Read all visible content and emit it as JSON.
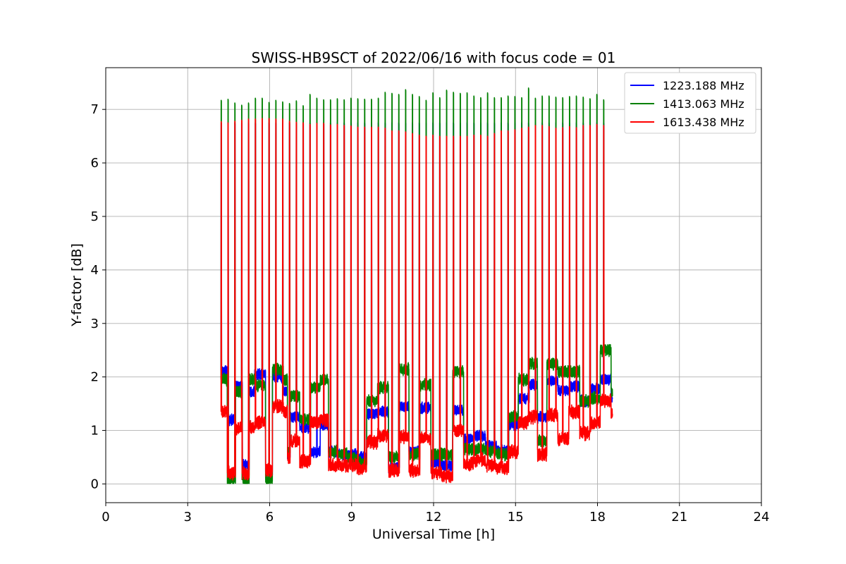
{
  "chart_data": {
    "type": "line",
    "title": "SWISS-HB9SCT of 2022/06/16 with focus code = 01",
    "xlabel": "Universal Time [h]",
    "ylabel": "Y-factor [dB]",
    "xlim": [
      0,
      24
    ],
    "ylim": [
      -0.35,
      7.78
    ],
    "xticks": [
      0,
      3,
      6,
      9,
      12,
      15,
      18,
      21,
      24
    ],
    "yticks": [
      0,
      1,
      2,
      3,
      4,
      5,
      6,
      7
    ],
    "grid": true,
    "legend_position": "top-right",
    "series": [
      {
        "name": "1223.188 MHz",
        "color": "#0000ff",
        "spike_peak": 6.75,
        "baseline_segments": [
          [
            4.22,
            2.12
          ],
          [
            4.45,
            1.2
          ],
          [
            4.75,
            1.82
          ],
          [
            5.0,
            0.35
          ],
          [
            5.25,
            1.72
          ],
          [
            5.45,
            2.05
          ],
          [
            5.85,
            0.25
          ],
          [
            6.1,
            2.0
          ],
          [
            6.5,
            1.72
          ],
          [
            6.65,
            0.55
          ],
          [
            6.75,
            1.25
          ],
          [
            7.1,
            1.05
          ],
          [
            7.5,
            0.6
          ],
          [
            7.85,
            1.1
          ],
          [
            8.15,
            0.6
          ],
          [
            8.5,
            0.55
          ],
          [
            8.85,
            0.55
          ],
          [
            9.2,
            0.5
          ],
          [
            9.55,
            1.32
          ],
          [
            9.95,
            1.35
          ],
          [
            10.35,
            0.3
          ],
          [
            10.75,
            1.45
          ],
          [
            11.1,
            0.6
          ],
          [
            11.5,
            1.42
          ],
          [
            11.9,
            0.4
          ],
          [
            12.3,
            0.35
          ],
          [
            12.7,
            1.38
          ],
          [
            13.1,
            0.85
          ],
          [
            13.5,
            0.9
          ],
          [
            13.9,
            0.72
          ],
          [
            14.3,
            0.62
          ],
          [
            14.75,
            1.1
          ],
          [
            15.1,
            1.6
          ],
          [
            15.5,
            1.85
          ],
          [
            15.8,
            1.25
          ],
          [
            16.15,
            1.92
          ],
          [
            16.55,
            1.75
          ],
          [
            16.95,
            1.82
          ],
          [
            17.35,
            1.55
          ],
          [
            17.75,
            1.78
          ],
          [
            18.1,
            1.95
          ],
          [
            18.5,
            1.58
          ]
        ]
      },
      {
        "name": "1413.063 MHz",
        "color": "#008000",
        "spike_peak": 7.2,
        "baseline_segments": [
          [
            4.22,
            1.95
          ],
          [
            4.45,
            0.08
          ],
          [
            4.75,
            1.72
          ],
          [
            5.0,
            0.08
          ],
          [
            5.25,
            1.95
          ],
          [
            5.45,
            1.85
          ],
          [
            5.85,
            0.08
          ],
          [
            6.1,
            2.15
          ],
          [
            6.5,
            1.95
          ],
          [
            6.65,
            0.6
          ],
          [
            6.75,
            1.65
          ],
          [
            7.1,
            1.2
          ],
          [
            7.5,
            1.8
          ],
          [
            7.85,
            1.95
          ],
          [
            8.15,
            0.6
          ],
          [
            8.5,
            0.55
          ],
          [
            8.85,
            0.48
          ],
          [
            9.2,
            0.4
          ],
          [
            9.55,
            1.55
          ],
          [
            9.95,
            1.8
          ],
          [
            10.35,
            0.5
          ],
          [
            10.75,
            2.15
          ],
          [
            11.1,
            0.55
          ],
          [
            11.5,
            1.85
          ],
          [
            11.9,
            0.55
          ],
          [
            12.3,
            0.55
          ],
          [
            12.7,
            2.1
          ],
          [
            13.1,
            0.65
          ],
          [
            13.5,
            0.65
          ],
          [
            13.9,
            0.6
          ],
          [
            14.3,
            0.55
          ],
          [
            14.75,
            1.25
          ],
          [
            15.1,
            1.95
          ],
          [
            15.5,
            2.25
          ],
          [
            15.8,
            0.8
          ],
          [
            16.15,
            2.25
          ],
          [
            16.55,
            2.1
          ],
          [
            16.95,
            2.1
          ],
          [
            17.35,
            1.55
          ],
          [
            17.75,
            1.6
          ],
          [
            18.1,
            2.5
          ],
          [
            18.5,
            1.7
          ]
        ]
      },
      {
        "name": "1613.438 MHz",
        "color": "#ff0000",
        "spike_peak": 6.7,
        "baseline_segments": [
          [
            4.22,
            1.35
          ],
          [
            4.45,
            0.2
          ],
          [
            4.75,
            1.05
          ],
          [
            5.0,
            0.2
          ],
          [
            5.25,
            1.05
          ],
          [
            5.45,
            1.15
          ],
          [
            5.85,
            0.25
          ],
          [
            6.1,
            1.45
          ],
          [
            6.5,
            1.35
          ],
          [
            6.65,
            0.48
          ],
          [
            6.75,
            0.82
          ],
          [
            7.1,
            0.42
          ],
          [
            7.5,
            1.15
          ],
          [
            7.85,
            1.2
          ],
          [
            8.15,
            0.35
          ],
          [
            8.5,
            0.35
          ],
          [
            8.85,
            0.35
          ],
          [
            9.2,
            0.28
          ],
          [
            9.55,
            0.78
          ],
          [
            9.95,
            0.9
          ],
          [
            10.35,
            0.25
          ],
          [
            10.75,
            0.88
          ],
          [
            11.1,
            0.25
          ],
          [
            11.5,
            0.85
          ],
          [
            11.9,
            0.2
          ],
          [
            12.3,
            0.15
          ],
          [
            12.7,
            1.0
          ],
          [
            13.1,
            0.38
          ],
          [
            13.5,
            0.45
          ],
          [
            13.9,
            0.35
          ],
          [
            14.3,
            0.3
          ],
          [
            14.75,
            0.6
          ],
          [
            15.1,
            1.15
          ],
          [
            15.5,
            1.25
          ],
          [
            15.8,
            0.55
          ],
          [
            16.15,
            1.3
          ],
          [
            16.55,
            0.85
          ],
          [
            16.95,
            1.35
          ],
          [
            17.35,
            0.95
          ],
          [
            17.75,
            1.15
          ],
          [
            18.1,
            1.55
          ],
          [
            18.5,
            1.3
          ]
        ]
      }
    ],
    "spike_times": [
      4.22,
      4.47,
      4.72,
      4.97,
      5.22,
      5.47,
      5.72,
      5.97,
      6.22,
      6.47,
      6.72,
      6.97,
      7.22,
      7.47,
      7.72,
      7.97,
      8.22,
      8.47,
      8.72,
      8.97,
      9.22,
      9.47,
      9.72,
      9.97,
      10.22,
      10.47,
      10.72,
      10.97,
      11.22,
      11.47,
      11.72,
      11.97,
      12.22,
      12.47,
      12.72,
      12.97,
      13.22,
      13.47,
      13.72,
      13.97,
      14.22,
      14.47,
      14.72,
      14.97,
      15.22,
      15.47,
      15.72,
      15.97,
      16.22,
      16.47,
      16.72,
      16.97,
      17.22,
      17.47,
      17.72,
      17.97,
      18.22
    ],
    "green_spike_peaks": [
      7.17,
      7.19,
      7.12,
      7.08,
      7.12,
      7.21,
      7.21,
      7.13,
      7.17,
      7.14,
      7.11,
      7.16,
      7.07,
      7.28,
      7.21,
      7.18,
      7.18,
      7.2,
      7.18,
      7.21,
      7.2,
      7.19,
      7.19,
      7.21,
      7.32,
      7.3,
      7.28,
      7.37,
      7.28,
      7.24,
      7.17,
      7.31,
      7.22,
      7.36,
      7.32,
      7.3,
      7.31,
      7.25,
      7.22,
      7.31,
      7.22,
      7.22,
      7.25,
      7.24,
      7.22,
      7.4,
      7.21,
      7.25,
      7.25,
      7.23,
      7.22,
      7.24,
      7.25,
      7.23,
      7.2,
      7.28,
      7.18
    ],
    "red_spike_peaks": [
      6.77,
      6.75,
      6.78,
      6.8,
      6.82,
      6.82,
      6.83,
      6.83,
      6.82,
      6.82,
      6.78,
      6.76,
      6.75,
      6.72,
      6.74,
      6.74,
      6.71,
      6.72,
      6.7,
      6.69,
      6.67,
      6.67,
      6.67,
      6.67,
      6.65,
      6.6,
      6.6,
      6.58,
      6.55,
      6.52,
      6.5,
      6.52,
      6.5,
      6.5,
      6.5,
      6.5,
      6.5,
      6.52,
      6.52,
      6.5,
      6.55,
      6.6,
      6.6,
      6.62,
      6.65,
      6.67,
      6.7,
      6.7,
      6.68,
      6.65,
      6.66,
      6.68,
      6.66,
      6.7,
      6.7,
      6.72,
      6.7
    ]
  }
}
